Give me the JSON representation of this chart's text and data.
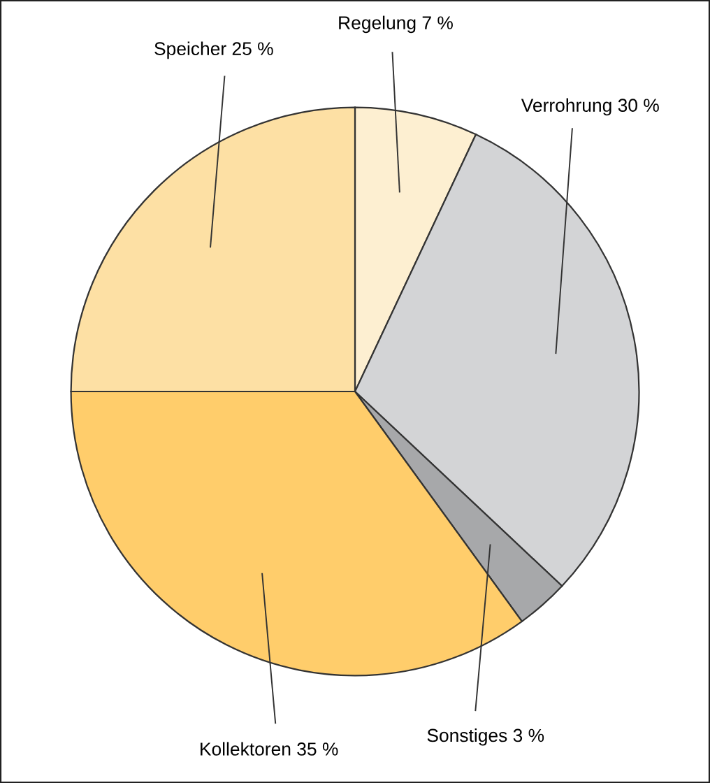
{
  "chart_data": {
    "type": "pie",
    "categories": [
      "Regelung",
      "Verrohrung",
      "Sonstiges",
      "Kollektoren",
      "Speicher"
    ],
    "values": [
      7,
      30,
      3,
      35,
      25
    ],
    "value_labels": [
      "7 %",
      "30 %",
      "3 %",
      "35 %",
      "25 %"
    ],
    "colors": [
      "#fdefd1",
      "#d3d4d6",
      "#a7a8aa",
      "#ffcd6b",
      "#fde0a4"
    ],
    "legend": false
  }
}
